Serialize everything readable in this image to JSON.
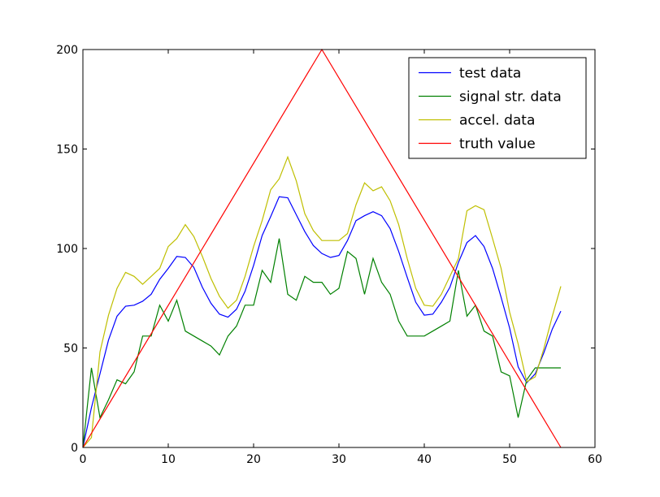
{
  "chart_data": {
    "type": "line",
    "title": "",
    "xlabel": "",
    "ylabel": "",
    "xlim": [
      0,
      60
    ],
    "ylim": [
      0,
      200
    ],
    "xticks": [
      "0",
      "10",
      "20",
      "30",
      "40",
      "50",
      "60"
    ],
    "yticks": [
      "0",
      "50",
      "100",
      "150",
      "200"
    ],
    "grid": false,
    "legend_position": "top-right",
    "series": [
      {
        "name": "test data",
        "color": "#0000ff",
        "x": [
          0,
          1,
          2,
          3,
          4,
          5,
          6,
          7,
          8,
          9,
          10,
          11,
          12,
          13,
          14,
          15,
          16,
          17,
          18,
          19,
          20,
          21,
          22,
          23,
          24,
          25,
          26,
          27,
          28,
          29,
          30,
          31,
          32,
          33,
          34,
          35,
          36,
          37,
          38,
          39,
          40,
          41,
          42,
          43,
          44,
          45,
          46,
          47,
          48,
          49,
          50,
          51,
          52,
          53,
          54,
          55,
          56
        ],
        "y": [
          0,
          20,
          37,
          54,
          66,
          71,
          71.5,
          73.5,
          77,
          84.5,
          90,
          96,
          95.5,
          90.5,
          80.5,
          72.5,
          67,
          65.5,
          69.5,
          78.5,
          91.5,
          106.5,
          116,
          126,
          125.5,
          117,
          108.5,
          101.5,
          97.5,
          95.5,
          96.5,
          104,
          114,
          116.5,
          118.5,
          116.5,
          110,
          98.5,
          85.5,
          73,
          66.5,
          67,
          73,
          80.5,
          93,
          103,
          106.5,
          101,
          90,
          75.5,
          60,
          40.5,
          32.5,
          37,
          47.5,
          59.5,
          68.5
        ]
      },
      {
        "name": "signal str. data",
        "color": "#008000",
        "x": [
          0,
          1,
          2,
          3,
          4,
          5,
          6,
          7,
          8,
          9,
          10,
          11,
          12,
          13,
          14,
          15,
          16,
          17,
          18,
          19,
          20,
          21,
          22,
          23,
          24,
          25,
          26,
          27,
          28,
          29,
          30,
          31,
          32,
          33,
          34,
          35,
          36,
          37,
          38,
          39,
          40,
          41,
          42,
          43,
          44,
          45,
          46,
          47,
          48,
          49,
          50,
          51,
          52,
          53,
          54,
          55,
          56
        ],
        "y": [
          0,
          40,
          15,
          24,
          34,
          32,
          38,
          56,
          56,
          71.5,
          63.5,
          74,
          58.5,
          56,
          53.5,
          51,
          46.5,
          56,
          61,
          71.5,
          71.5,
          89,
          83,
          105,
          77,
          74,
          86,
          83,
          83,
          77,
          80,
          98.5,
          95,
          77,
          95,
          83,
          77,
          63.5,
          56,
          56,
          56,
          58.5,
          61,
          63.5,
          89,
          66,
          71.5,
          58.5,
          56,
          38,
          36,
          15,
          34,
          40,
          40,
          40,
          40
        ]
      },
      {
        "name": "accel. data",
        "color": "#bfbf00",
        "x": [
          0,
          1,
          2,
          3,
          4,
          5,
          6,
          7,
          8,
          9,
          10,
          11,
          12,
          13,
          14,
          15,
          16,
          17,
          18,
          19,
          20,
          21,
          22,
          23,
          24,
          25,
          26,
          27,
          28,
          29,
          30,
          31,
          32,
          33,
          34,
          35,
          36,
          37,
          38,
          39,
          40,
          41,
          42,
          43,
          44,
          45,
          46,
          47,
          48,
          49,
          50,
          51,
          52,
          53,
          54,
          55,
          56
        ],
        "y": [
          0,
          5,
          48,
          66.5,
          80,
          88,
          86,
          82,
          86,
          90,
          101,
          105,
          112,
          106,
          96,
          85,
          76,
          70,
          74,
          86,
          101,
          114,
          129.5,
          135,
          146,
          134,
          117.5,
          109,
          104,
          104,
          104,
          107.5,
          122,
          133,
          129,
          131,
          124,
          112,
          95,
          80,
          71.5,
          71,
          77,
          86,
          95,
          119,
          121.5,
          119.5,
          105,
          90,
          68,
          52,
          33,
          35.5,
          49.5,
          66,
          81
        ]
      },
      {
        "name": "truth value",
        "color": "#ff0000",
        "x": [
          0,
          28,
          56
        ],
        "y": [
          0,
          200,
          0
        ]
      }
    ]
  }
}
